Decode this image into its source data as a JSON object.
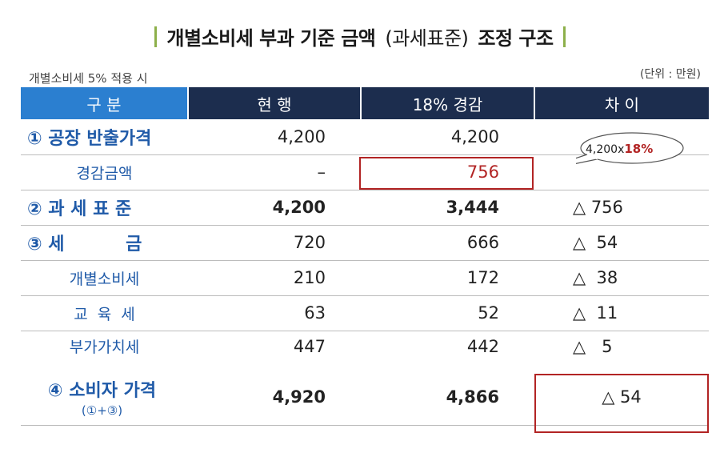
{
  "title": {
    "main": "개별소비세 부과 기준 금액",
    "paren": "(과세표준)",
    "tail": "조정 구조"
  },
  "note_left": "개별소비세 5% 적용 시",
  "note_right": "(단위 : 만원)",
  "bubble": {
    "prefix": "4,200x",
    "highlight": "18%"
  },
  "colors": {
    "header_blue": "#2b7fd0",
    "header_navy": "#1c2d4e",
    "label_blue": "#1f5aa8",
    "highlight_red": "#b22424",
    "accent_green": "#8db04a"
  },
  "table": {
    "headers": [
      "구 분",
      "현 행",
      "18% 경감",
      "차 이"
    ],
    "rows": [
      {
        "label": "① 공장 반출가격",
        "current": "4,200",
        "reduced": "4,200",
        "diff": ""
      },
      {
        "label": "경감금액",
        "current": "–",
        "reduced": "756",
        "diff": ""
      },
      {
        "label": "② 과 세 표 준",
        "current": "4,200",
        "reduced": "3,444",
        "diff": "△ 756"
      },
      {
        "label": "③ 세          금",
        "current": "720",
        "reduced": "666",
        "diff": "△  54"
      },
      {
        "label": "개별소비세",
        "current": "210",
        "reduced": "172",
        "diff": "△  38"
      },
      {
        "label": "교  육  세",
        "current": "63",
        "reduced": "52",
        "diff": "△  11"
      },
      {
        "label": "부가가치세",
        "current": "447",
        "reduced": "442",
        "diff": "△   5"
      },
      {
        "label": "④ 소비자 가격",
        "formula": "(①+③)",
        "current": "4,920",
        "reduced": "4,866",
        "diff": "△ 54"
      }
    ]
  }
}
